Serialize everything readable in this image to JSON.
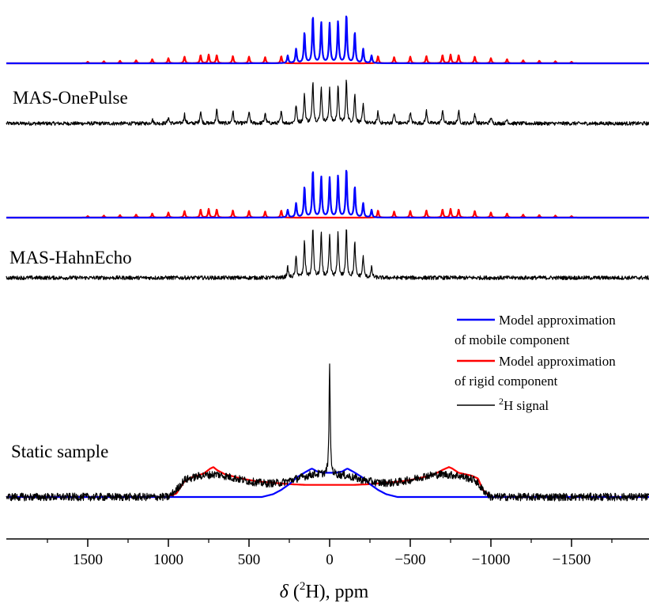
{
  "chart_data": {
    "type": "line",
    "xlabel": {
      "prefix": "δ",
      "sup": "2",
      "element": "H",
      "unit": "), ppm",
      "open": " ("
    },
    "xlim": [
      1900,
      -1900
    ],
    "xticks": [
      1500,
      1000,
      500,
      0,
      -500,
      -1000,
      -1500
    ],
    "xtick_labels": [
      "1500",
      "1000",
      "500",
      "0",
      "−500",
      "−1000",
      "−1500"
    ],
    "grid": false,
    "legend_position": "right",
    "legend": [
      {
        "line1": "Model approximation",
        "line2": "of mobile component",
        "color": "#0000ff"
      },
      {
        "line1": "Model approximation",
        "line2": "of rigid component",
        "color": "#ff0000"
      },
      {
        "sup": "2",
        "text": "H signal",
        "color": "#000000"
      }
    ],
    "panels": [
      {
        "label": "MAS-OnePulse",
        "spinning_rate_ppm": 52,
        "series": [
          {
            "name": "Model approximation of rigid component",
            "color": "#ff0000",
            "kind": "sidebands",
            "peaks": [
              [
                1500,
                0.03
              ],
              [
                1400,
                0.04
              ],
              [
                1300,
                0.05
              ],
              [
                1200,
                0.06
              ],
              [
                1100,
                0.08
              ],
              [
                1000,
                0.1
              ],
              [
                900,
                0.13
              ],
              [
                800,
                0.16
              ],
              [
                750,
                0.17
              ],
              [
                700,
                0.16
              ],
              [
                600,
                0.14
              ],
              [
                500,
                0.13
              ],
              [
                400,
                0.12
              ],
              [
                300,
                0.14
              ],
              [
                -300,
                0.14
              ],
              [
                -400,
                0.12
              ],
              [
                -500,
                0.13
              ],
              [
                -600,
                0.14
              ],
              [
                -700,
                0.16
              ],
              [
                -750,
                0.17
              ],
              [
                -800,
                0.16
              ],
              [
                -900,
                0.13
              ],
              [
                -1000,
                0.1
              ],
              [
                -1100,
                0.08
              ],
              [
                -1200,
                0.06
              ],
              [
                -1300,
                0.05
              ],
              [
                -1400,
                0.04
              ],
              [
                -1500,
                0.03
              ]
            ]
          },
          {
            "name": "Model approximation of mobile component",
            "color": "#0000ff",
            "kind": "sidebands",
            "peaks": [
              [
                260,
                0.15
              ],
              [
                208,
                0.28
              ],
              [
                156,
                0.6
              ],
              [
                104,
                0.92
              ],
              [
                52,
                0.8
              ],
              [
                0,
                0.78
              ],
              [
                -52,
                0.82
              ],
              [
                -104,
                0.95
              ],
              [
                -156,
                0.6
              ],
              [
                -208,
                0.28
              ],
              [
                -260,
                0.15
              ]
            ]
          },
          {
            "name": "2H signal",
            "color": "#000000",
            "kind": "sidebands_noisy",
            "noise": 0.035,
            "peaks": [
              [
                1100,
                0.08
              ],
              [
                1000,
                0.12
              ],
              [
                900,
                0.18
              ],
              [
                800,
                0.24
              ],
              [
                700,
                0.26
              ],
              [
                600,
                0.24
              ],
              [
                500,
                0.22
              ],
              [
                400,
                0.2
              ],
              [
                300,
                0.22
              ],
              [
                208,
                0.35
              ],
              [
                156,
                0.55
              ],
              [
                104,
                0.8
              ],
              [
                52,
                0.7
              ],
              [
                0,
                0.68
              ],
              [
                -52,
                0.72
              ],
              [
                -104,
                0.82
              ],
              [
                -156,
                0.55
              ],
              [
                -208,
                0.35
              ],
              [
                -300,
                0.22
              ],
              [
                -400,
                0.2
              ],
              [
                -500,
                0.22
              ],
              [
                -600,
                0.24
              ],
              [
                -700,
                0.26
              ],
              [
                -800,
                0.24
              ],
              [
                -900,
                0.18
              ],
              [
                -1000,
                0.12
              ],
              [
                -1100,
                0.08
              ]
            ]
          }
        ]
      },
      {
        "label": "MAS-HahnEcho",
        "spinning_rate_ppm": 52,
        "series": [
          {
            "name": "Model approximation of rigid component",
            "color": "#ff0000",
            "kind": "sidebands",
            "peaks": [
              [
                1500,
                0.03
              ],
              [
                1400,
                0.04
              ],
              [
                1300,
                0.05
              ],
              [
                1200,
                0.06
              ],
              [
                1100,
                0.08
              ],
              [
                1000,
                0.1
              ],
              [
                900,
                0.13
              ],
              [
                800,
                0.16
              ],
              [
                750,
                0.17
              ],
              [
                700,
                0.16
              ],
              [
                600,
                0.14
              ],
              [
                500,
                0.13
              ],
              [
                400,
                0.12
              ],
              [
                300,
                0.14
              ],
              [
                -300,
                0.14
              ],
              [
                -400,
                0.12
              ],
              [
                -500,
                0.13
              ],
              [
                -600,
                0.14
              ],
              [
                -700,
                0.16
              ],
              [
                -750,
                0.17
              ],
              [
                -800,
                0.16
              ],
              [
                -900,
                0.13
              ],
              [
                -1000,
                0.1
              ],
              [
                -1100,
                0.08
              ],
              [
                -1200,
                0.06
              ],
              [
                -1300,
                0.05
              ],
              [
                -1400,
                0.04
              ],
              [
                -1500,
                0.03
              ]
            ]
          },
          {
            "name": "Model approximation of mobile component",
            "color": "#0000ff",
            "kind": "sidebands",
            "peaks": [
              [
                260,
                0.15
              ],
              [
                208,
                0.28
              ],
              [
                156,
                0.6
              ],
              [
                104,
                0.92
              ],
              [
                52,
                0.8
              ],
              [
                0,
                0.78
              ],
              [
                -52,
                0.82
              ],
              [
                -104,
                0.95
              ],
              [
                -156,
                0.6
              ],
              [
                -208,
                0.28
              ],
              [
                -260,
                0.15
              ]
            ]
          },
          {
            "name": "2H signal",
            "color": "#000000",
            "kind": "sidebands_noisy",
            "noise": 0.035,
            "peaks": [
              [
                260,
                0.18
              ],
              [
                208,
                0.38
              ],
              [
                156,
                0.65
              ],
              [
                104,
                0.9
              ],
              [
                52,
                0.78
              ],
              [
                0,
                0.75
              ],
              [
                -52,
                0.8
              ],
              [
                -104,
                0.88
              ],
              [
                -156,
                0.62
              ],
              [
                -208,
                0.38
              ],
              [
                -260,
                0.18
              ]
            ]
          }
        ]
      },
      {
        "label": "Static sample",
        "series": [
          {
            "name": "Model approximation of rigid component",
            "color": "#ff0000",
            "kind": "curve",
            "points": [
              [
                1900,
                0.0
              ],
              [
                1000,
                0.0
              ],
              [
                950,
                0.05
              ],
              [
                900,
                0.22
              ],
              [
                850,
                0.28
              ],
              [
                780,
                0.33
              ],
              [
                740,
                0.4
              ],
              [
                720,
                0.42
              ],
              [
                700,
                0.38
              ],
              [
                650,
                0.32
              ],
              [
                550,
                0.26
              ],
              [
                450,
                0.22
              ],
              [
                350,
                0.2
              ],
              [
                250,
                0.18
              ],
              [
                150,
                0.17
              ],
              [
                0,
                0.17
              ],
              [
                -150,
                0.17
              ],
              [
                -250,
                0.18
              ],
              [
                -350,
                0.2
              ],
              [
                -450,
                0.22
              ],
              [
                -550,
                0.26
              ],
              [
                -650,
                0.32
              ],
              [
                -700,
                0.38
              ],
              [
                -740,
                0.42
              ],
              [
                -760,
                0.4
              ],
              [
                -800,
                0.34
              ],
              [
                -880,
                0.3
              ],
              [
                -920,
                0.26
              ],
              [
                -950,
                0.1
              ],
              [
                -1000,
                0.0
              ],
              [
                -1900,
                0.0
              ]
            ]
          },
          {
            "name": "Model approximation of mobile component",
            "color": "#0000ff",
            "kind": "curve",
            "points": [
              [
                1900,
                0.0
              ],
              [
                420,
                0.0
              ],
              [
                350,
                0.04
              ],
              [
                300,
                0.1
              ],
              [
                250,
                0.18
              ],
              [
                200,
                0.28
              ],
              [
                150,
                0.35
              ],
              [
                110,
                0.4
              ],
              [
                80,
                0.36
              ],
              [
                40,
                0.34
              ],
              [
                0,
                0.34
              ],
              [
                -40,
                0.34
              ],
              [
                -80,
                0.36
              ],
              [
                -110,
                0.4
              ],
              [
                -150,
                0.35
              ],
              [
                -200,
                0.28
              ],
              [
                -250,
                0.18
              ],
              [
                -300,
                0.1
              ],
              [
                -350,
                0.04
              ],
              [
                -420,
                0.0
              ],
              [
                -1900,
                0.0
              ]
            ]
          },
          {
            "name": "2H signal",
            "color": "#000000",
            "kind": "static_noisy",
            "noise": 0.05,
            "center_peak": [
              0,
              1.6
            ],
            "envelope": [
              [
                1900,
                0.0
              ],
              [
                1000,
                0.0
              ],
              [
                950,
                0.1
              ],
              [
                900,
                0.24
              ],
              [
                800,
                0.3
              ],
              [
                700,
                0.32
              ],
              [
                600,
                0.27
              ],
              [
                500,
                0.22
              ],
              [
                400,
                0.19
              ],
              [
                300,
                0.2
              ],
              [
                200,
                0.26
              ],
              [
                100,
                0.32
              ],
              [
                0,
                0.32
              ],
              [
                -100,
                0.3
              ],
              [
                -200,
                0.24
              ],
              [
                -300,
                0.2
              ],
              [
                -400,
                0.2
              ],
              [
                -500,
                0.24
              ],
              [
                -600,
                0.3
              ],
              [
                -700,
                0.32
              ],
              [
                -800,
                0.3
              ],
              [
                -900,
                0.24
              ],
              [
                -950,
                0.1
              ],
              [
                -1000,
                0.0
              ],
              [
                -1900,
                0.0
              ]
            ]
          }
        ]
      }
    ]
  }
}
